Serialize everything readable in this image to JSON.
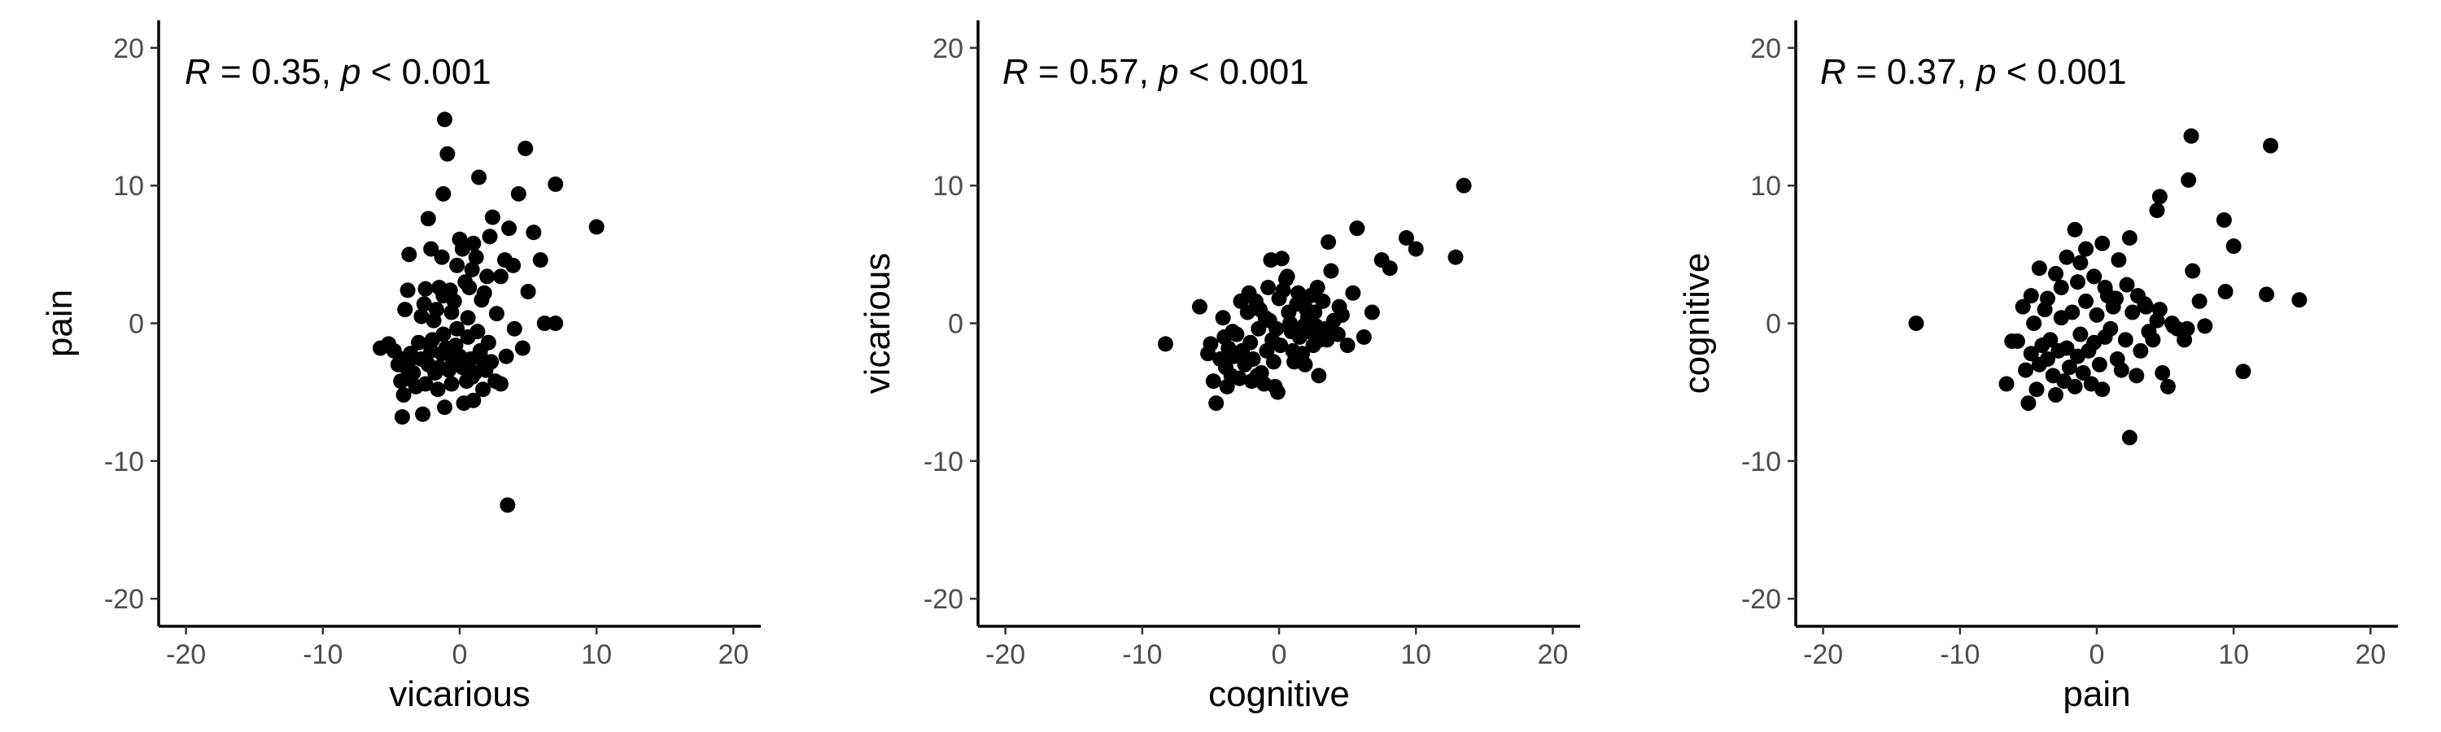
{
  "chart_data": [
    {
      "type": "scatter",
      "xlabel": "vicarious",
      "ylabel": "pain",
      "xlim": [
        -22,
        22
      ],
      "ylim": [
        -22,
        22
      ],
      "xticks": [
        -20,
        -10,
        0,
        10,
        20
      ],
      "yticks": [
        -20,
        -10,
        0,
        10,
        20
      ],
      "xtick_labels": [
        "-20",
        "-10",
        "0",
        "10",
        "20"
      ],
      "ytick_labels": [
        "-20",
        "-10",
        "0",
        "10",
        "20"
      ],
      "annotation": {
        "r_symbol": "R",
        "r_text": " = 0.35, ",
        "p_symbol": "p",
        "p_text": " < 0.001"
      },
      "grid": false,
      "point_color": "#000000",
      "points": [
        [
          -5.8,
          -1.8
        ],
        [
          -5.2,
          -1.5
        ],
        [
          -4.8,
          -2.0
        ],
        [
          -4.5,
          -3.0
        ],
        [
          -4.3,
          -4.2
        ],
        [
          -4.1,
          -5.2
        ],
        [
          -4.2,
          -6.8
        ],
        [
          -3.9,
          -3.2
        ],
        [
          -3.8,
          -4.0
        ],
        [
          -3.6,
          -2.6
        ],
        [
          -3.4,
          -3.6
        ],
        [
          -3.2,
          -4.6
        ],
        [
          -3.0,
          -1.4
        ],
        [
          -2.8,
          -2.6
        ],
        [
          -2.7,
          -6.6
        ],
        [
          -2.5,
          -4.4
        ],
        [
          -2.3,
          -3.0
        ],
        [
          -2.1,
          -2.0
        ],
        [
          -2.0,
          -1.2
        ],
        [
          -1.8,
          -3.6
        ],
        [
          -1.6,
          -4.8
        ],
        [
          -1.5,
          -3.2
        ],
        [
          -1.3,
          -2.2
        ],
        [
          -1.2,
          -0.8
        ],
        [
          -1.0,
          -1.8
        ],
        [
          -0.8,
          -3.4
        ],
        [
          -0.6,
          -4.4
        ],
        [
          -0.5,
          -2.8
        ],
        [
          -0.3,
          -1.6
        ],
        [
          -0.2,
          -0.4
        ],
        [
          0.0,
          -2.4
        ],
        [
          0.2,
          -3.2
        ],
        [
          0.3,
          -5.8
        ],
        [
          0.5,
          -4.2
        ],
        [
          0.6,
          -1.0
        ],
        [
          0.8,
          -2.6
        ],
        [
          1.0,
          -5.6
        ],
        [
          1.1,
          -3.6
        ],
        [
          1.3,
          -0.6
        ],
        [
          1.5,
          -2.0
        ],
        [
          1.7,
          -4.8
        ],
        [
          1.9,
          -3.4
        ],
        [
          2.1,
          -1.4
        ],
        [
          2.3,
          -2.8
        ],
        [
          2.6,
          -4.2
        ],
        [
          3.0,
          -4.4
        ],
        [
          3.4,
          -2.4
        ],
        [
          3.5,
          -13.2
        ],
        [
          4.0,
          -0.4
        ],
        [
          4.6,
          -1.8
        ],
        [
          -4.2,
          -2.6
        ],
        [
          -3.6,
          -2.2
        ],
        [
          -1.1,
          -6.1
        ],
        [
          0.9,
          -3.9
        ],
        [
          -4.0,
          1.0
        ],
        [
          -3.8,
          2.4
        ],
        [
          -3.7,
          5.0
        ],
        [
          -2.8,
          0.5
        ],
        [
          -2.6,
          1.4
        ],
        [
          -2.5,
          2.5
        ],
        [
          -2.3,
          7.6
        ],
        [
          -2.1,
          5.4
        ],
        [
          -1.9,
          0.2
        ],
        [
          -1.7,
          1.0
        ],
        [
          -1.5,
          2.6
        ],
        [
          -1.3,
          4.8
        ],
        [
          -1.2,
          9.4
        ],
        [
          -1.1,
          14.8
        ],
        [
          -0.9,
          12.3
        ],
        [
          -0.7,
          2.4
        ],
        [
          -0.6,
          0.8
        ],
        [
          -0.4,
          1.6
        ],
        [
          -0.2,
          4.2
        ],
        [
          0.0,
          6.1
        ],
        [
          0.2,
          5.4
        ],
        [
          0.4,
          3.0
        ],
        [
          0.6,
          0.4
        ],
        [
          0.7,
          2.6
        ],
        [
          0.9,
          3.9
        ],
        [
          1.0,
          5.8
        ],
        [
          1.2,
          4.8
        ],
        [
          1.4,
          10.6
        ],
        [
          1.6,
          1.7
        ],
        [
          1.8,
          2.2
        ],
        [
          2.0,
          3.4
        ],
        [
          2.2,
          6.3
        ],
        [
          2.4,
          7.7
        ],
        [
          2.7,
          0.7
        ],
        [
          3.0,
          3.4
        ],
        [
          3.3,
          4.6
        ],
        [
          3.6,
          6.9
        ],
        [
          3.9,
          4.2
        ],
        [
          4.3,
          9.4
        ],
        [
          4.8,
          12.7
        ],
        [
          5.0,
          2.3
        ],
        [
          5.4,
          6.6
        ],
        [
          5.9,
          4.6
        ],
        [
          6.2,
          0.0
        ],
        [
          7.0,
          10.1
        ],
        [
          7.0,
          0.0
        ],
        [
          10.0,
          7.0
        ],
        [
          -0.4,
          -2.0
        ],
        [
          1.6,
          -2.6
        ],
        [
          -1.2,
          2.0
        ]
      ]
    },
    {
      "type": "scatter",
      "xlabel": "cognitive",
      "ylabel": "vicarious",
      "xlim": [
        -22,
        22
      ],
      "ylim": [
        -22,
        22
      ],
      "xticks": [
        -20,
        -10,
        0,
        10,
        20
      ],
      "yticks": [
        -20,
        -10,
        0,
        10,
        20
      ],
      "xtick_labels": [
        "-20",
        "-10",
        "0",
        "10",
        "20"
      ],
      "ytick_labels": [
        "-20",
        "-10",
        "0",
        "10",
        "20"
      ],
      "annotation": {
        "r_symbol": "R",
        "r_text": " = 0.57, ",
        "p_symbol": "p",
        "p_text": " < 0.001"
      },
      "grid": false,
      "point_color": "#000000",
      "points": [
        [
          -8.3,
          -1.5
        ],
        [
          -5.8,
          1.2
        ],
        [
          -5.0,
          -1.5
        ],
        [
          -4.8,
          -4.2
        ],
        [
          -4.6,
          -5.8
        ],
        [
          -4.3,
          -2.6
        ],
        [
          -4.1,
          0.4
        ],
        [
          -3.9,
          -3.2
        ],
        [
          -3.7,
          -1.8
        ],
        [
          -3.5,
          -3.8
        ],
        [
          -3.3,
          -2.4
        ],
        [
          -3.1,
          -0.8
        ],
        [
          -2.9,
          -4.0
        ],
        [
          -2.7,
          -2.0
        ],
        [
          -2.5,
          -3.0
        ],
        [
          -2.3,
          0.8
        ],
        [
          -2.1,
          -1.4
        ],
        [
          -1.9,
          -2.6
        ],
        [
          -1.7,
          1.6
        ],
        [
          -1.5,
          -0.4
        ],
        [
          -1.3,
          -3.6
        ],
        [
          -1.1,
          -4.4
        ],
        [
          -0.9,
          -2.0
        ],
        [
          -0.7,
          0.2
        ],
        [
          -0.5,
          -1.2
        ],
        [
          -0.3,
          -4.6
        ],
        [
          -0.1,
          -5.0
        ],
        [
          0.1,
          -1.6
        ],
        [
          0.3,
          2.4
        ],
        [
          0.5,
          3.2
        ],
        [
          0.7,
          0.8
        ],
        [
          0.9,
          -0.6
        ],
        [
          1.1,
          -2.8
        ],
        [
          1.3,
          1.4
        ],
        [
          1.5,
          -1.0
        ],
        [
          1.7,
          -2.2
        ],
        [
          1.9,
          -3.0
        ],
        [
          2.1,
          0.4
        ],
        [
          2.3,
          2.0
        ],
        [
          2.5,
          -1.6
        ],
        [
          2.7,
          -0.2
        ],
        [
          2.9,
          -3.8
        ],
        [
          3.2,
          1.6
        ],
        [
          3.5,
          -1.2
        ],
        [
          3.8,
          3.8
        ],
        [
          4.0,
          0.2
        ],
        [
          4.3,
          -0.8
        ],
        [
          4.6,
          0.6
        ],
        [
          5.0,
          -1.6
        ],
        [
          5.4,
          2.2
        ],
        [
          6.2,
          -1.0
        ],
        [
          6.8,
          0.8
        ],
        [
          7.5,
          4.6
        ],
        [
          8.1,
          4.0
        ],
        [
          9.3,
          6.2
        ],
        [
          10.0,
          5.4
        ],
        [
          12.9,
          4.8
        ],
        [
          13.5,
          10.0
        ],
        [
          5.7,
          6.9
        ],
        [
          3.6,
          5.9
        ],
        [
          -2.8,
          1.6
        ],
        [
          -2.2,
          2.2
        ],
        [
          -1.4,
          1.0
        ],
        [
          -0.8,
          2.6
        ],
        [
          0.0,
          1.8
        ],
        [
          0.6,
          3.4
        ],
        [
          1.4,
          2.2
        ],
        [
          2.0,
          1.0
        ],
        [
          2.6,
          0.8
        ],
        [
          -0.6,
          4.6
        ],
        [
          0.2,
          4.7
        ],
        [
          -3.4,
          -0.6
        ],
        [
          -4.0,
          -1.0
        ],
        [
          -2.4,
          -2.8
        ],
        [
          -1.6,
          -3.8
        ],
        [
          1.0,
          -2.0
        ],
        [
          2.2,
          -0.6
        ],
        [
          3.0,
          -1.2
        ],
        [
          -1.0,
          0.4
        ],
        [
          -0.2,
          -0.4
        ],
        [
          0.8,
          0.0
        ],
        [
          1.8,
          -0.2
        ],
        [
          3.4,
          -0.4
        ],
        [
          -5.2,
          -2.2
        ],
        [
          -3.8,
          -4.6
        ],
        [
          -2.0,
          -4.2
        ],
        [
          -0.4,
          -2.8
        ],
        [
          1.6,
          1.8
        ],
        [
          2.8,
          2.6
        ],
        [
          4.4,
          1.2
        ]
      ]
    },
    {
      "type": "scatter",
      "xlabel": "pain",
      "ylabel": "cognitive",
      "xlim": [
        -22,
        22
      ],
      "ylim": [
        -22,
        22
      ],
      "xticks": [
        -20,
        -10,
        0,
        10,
        20
      ],
      "yticks": [
        -20,
        -10,
        0,
        10,
        20
      ],
      "xtick_labels": [
        "-20",
        "-10",
        "0",
        "10",
        "20"
      ],
      "ytick_labels": [
        "-20",
        "-10",
        "0",
        "10",
        "20"
      ],
      "annotation": {
        "r_symbol": "R",
        "r_text": " = 0.37, ",
        "p_symbol": "p",
        "p_text": " < 0.001"
      },
      "grid": false,
      "point_color": "#000000",
      "points": [
        [
          -13.2,
          0.0
        ],
        [
          -6.6,
          -4.4
        ],
        [
          -6.2,
          -1.3
        ],
        [
          -5.8,
          -1.3
        ],
        [
          -5.4,
          1.2
        ],
        [
          -5.2,
          -3.4
        ],
        [
          -5.0,
          -5.8
        ],
        [
          -4.8,
          -2.2
        ],
        [
          -4.6,
          0.0
        ],
        [
          -4.4,
          -4.8
        ],
        [
          -4.2,
          -3.0
        ],
        [
          -4.0,
          -1.6
        ],
        [
          -3.8,
          1.0
        ],
        [
          -3.6,
          -2.6
        ],
        [
          -3.4,
          -1.2
        ],
        [
          -3.2,
          -3.8
        ],
        [
          -3.0,
          -5.2
        ],
        [
          -2.8,
          -2.0
        ],
        [
          -2.6,
          0.4
        ],
        [
          -2.4,
          -4.2
        ],
        [
          -2.2,
          -1.8
        ],
        [
          -2.0,
          -3.2
        ],
        [
          -1.8,
          0.8
        ],
        [
          -1.6,
          -4.6
        ],
        [
          -1.4,
          -2.4
        ],
        [
          -1.2,
          -0.8
        ],
        [
          -1.0,
          -3.6
        ],
        [
          -0.8,
          1.6
        ],
        [
          -0.6,
          -2.0
        ],
        [
          -0.4,
          -4.4
        ],
        [
          -0.2,
          -1.4
        ],
        [
          0.0,
          0.6
        ],
        [
          0.2,
          -3.0
        ],
        [
          0.4,
          -4.8
        ],
        [
          0.6,
          -1.0
        ],
        [
          0.8,
          2.0
        ],
        [
          1.0,
          -0.4
        ],
        [
          1.2,
          1.2
        ],
        [
          1.5,
          -2.6
        ],
        [
          1.8,
          -3.4
        ],
        [
          2.1,
          -1.2
        ],
        [
          2.4,
          -8.3
        ],
        [
          2.6,
          0.8
        ],
        [
          2.9,
          -3.8
        ],
        [
          3.2,
          -2.0
        ],
        [
          3.5,
          1.4
        ],
        [
          3.8,
          -0.6
        ],
        [
          4.1,
          -1.2
        ],
        [
          4.4,
          0.2
        ],
        [
          4.8,
          -3.6
        ],
        [
          5.2,
          -4.6
        ],
        [
          5.5,
          0.0
        ],
        [
          5.9,
          -0.4
        ],
        [
          6.4,
          -1.2
        ],
        [
          7.0,
          3.8
        ],
        [
          7.5,
          1.6
        ],
        [
          7.9,
          -0.2
        ],
        [
          9.3,
          7.5
        ],
        [
          9.4,
          2.3
        ],
        [
          10.0,
          5.6
        ],
        [
          10.7,
          -3.5
        ],
        [
          12.4,
          2.1
        ],
        [
          12.7,
          12.9
        ],
        [
          14.8,
          1.7
        ],
        [
          6.9,
          13.6
        ],
        [
          6.7,
          10.4
        ],
        [
          4.6,
          9.2
        ],
        [
          4.4,
          8.2
        ],
        [
          2.4,
          6.2
        ],
        [
          1.6,
          4.6
        ],
        [
          0.4,
          5.8
        ],
        [
          -0.8,
          5.4
        ],
        [
          -1.6,
          6.8
        ],
        [
          -2.2,
          4.8
        ],
        [
          -3.0,
          3.6
        ],
        [
          -4.2,
          4.0
        ],
        [
          -4.8,
          2.0
        ],
        [
          -3.6,
          1.8
        ],
        [
          -2.6,
          2.6
        ],
        [
          -1.4,
          3.0
        ],
        [
          -0.2,
          3.4
        ],
        [
          0.6,
          2.6
        ],
        [
          1.4,
          1.8
        ],
        [
          2.2,
          2.8
        ],
        [
          3.0,
          2.0
        ],
        [
          3.6,
          1.2
        ],
        [
          4.6,
          1.0
        ],
        [
          5.6,
          -0.2
        ],
        [
          6.6,
          -0.4
        ],
        [
          -1.2,
          4.4
        ]
      ]
    }
  ]
}
